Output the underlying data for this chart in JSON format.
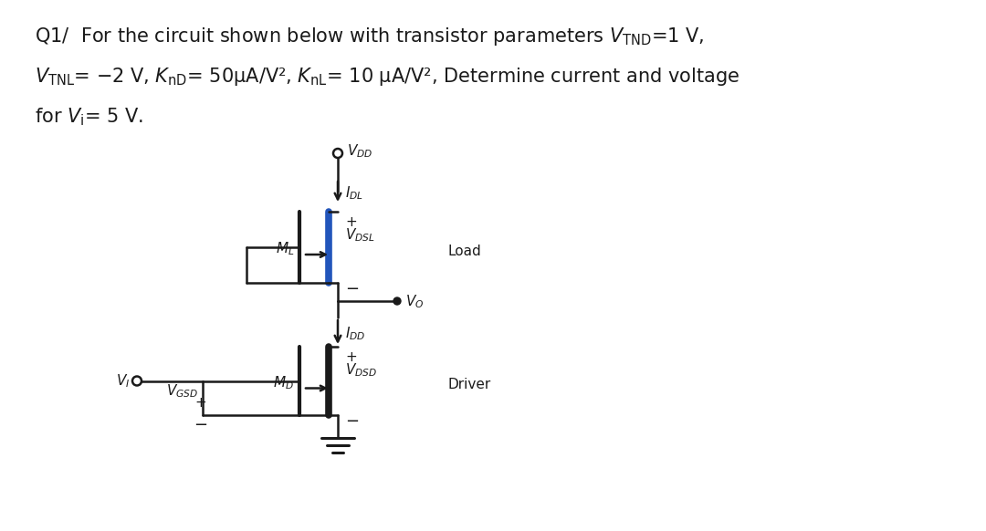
{
  "bg_color": "#ffffff",
  "circuit_color": "#1a1a1a",
  "highlight_color": "#2255bb",
  "text_color": "#1a1a1a",
  "fig_w": 10.8,
  "fig_h": 5.82,
  "dpi": 100
}
